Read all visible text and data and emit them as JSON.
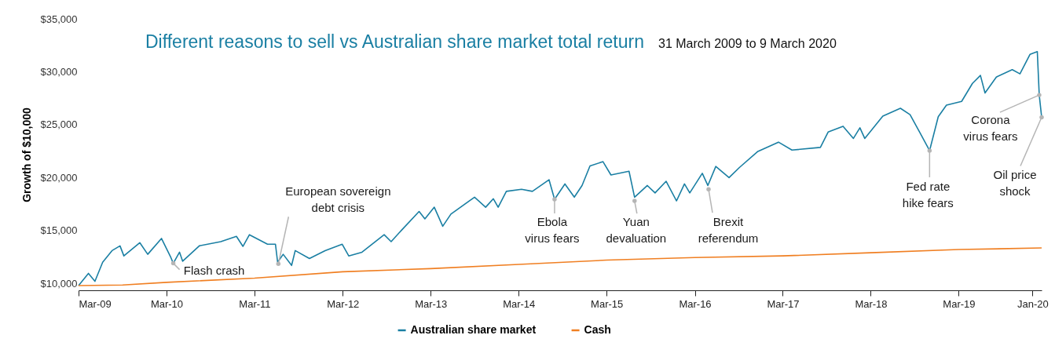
{
  "chart_data": {
    "type": "line",
    "title": "Different reasons to sell vs Australian share market total return",
    "subtitle": "31 March 2009 to 9 March 2020",
    "ylabel": "Growth of $10,000",
    "xlim": [
      "2009-03-31",
      "2020-03-09"
    ],
    "xticks": [
      {
        "value": "2009-03-31",
        "label": "Mar-09"
      },
      {
        "value": "2010-03-31",
        "label": "Mar-10"
      },
      {
        "value": "2011-03-31",
        "label": "Mar-11"
      },
      {
        "value": "2012-03-31",
        "label": "Mar-12"
      },
      {
        "value": "2013-03-31",
        "label": "Mar-13"
      },
      {
        "value": "2014-03-31",
        "label": "Mar-14"
      },
      {
        "value": "2015-03-31",
        "label": "Mar-15"
      },
      {
        "value": "2016-03-31",
        "label": "Mar-16"
      },
      {
        "value": "2017-03-31",
        "label": "Mar-17"
      },
      {
        "value": "2018-03-31",
        "label": "Mar-18"
      },
      {
        "value": "2019-03-31",
        "label": "Mar-19"
      },
      {
        "value": "2020-01-31",
        "label": "Jan-20"
      }
    ],
    "ylim": [
      9350,
      35000
    ],
    "yticks": [
      {
        "value": 10000,
        "label": "$10,000"
      },
      {
        "value": 15000,
        "label": "$15,000"
      },
      {
        "value": 20000,
        "label": "$20,000"
      },
      {
        "value": 25000,
        "label": "$25,000"
      },
      {
        "value": 30000,
        "label": "$30,000"
      },
      {
        "value": 35000,
        "label": "$35,000"
      }
    ],
    "grid": false,
    "legend": "bottom",
    "marker": "none",
    "line_style": "solid",
    "series": [
      {
        "name": "Australian share market",
        "color": "#1a7fa3",
        "x": [
          "2009-03-31",
          "2009-05-11",
          "2009-06-07",
          "2009-07-09",
          "2009-08-17",
          "2009-09-19",
          "2009-10-05",
          "2009-12-10",
          "2010-01-12",
          "2010-03-10",
          "2010-04-18",
          "2010-04-28",
          "2010-05-24",
          "2010-06-06",
          "2010-08-14",
          "2010-11-11",
          "2011-01-15",
          "2011-02-11",
          "2011-03-10",
          "2011-05-24",
          "2011-06-26",
          "2011-07-05",
          "2011-07-28",
          "2011-09-01",
          "2011-09-16",
          "2011-11-14",
          "2012-01-18",
          "2012-03-29",
          "2012-04-25",
          "2012-06-19",
          "2012-09-19",
          "2012-10-18",
          "2012-12-01",
          "2013-02-11",
          "2013-03-07",
          "2013-04-15",
          "2013-05-20",
          "2013-06-23",
          "2013-09-29",
          "2013-11-14",
          "2013-12-16",
          "2014-01-05",
          "2014-02-08",
          "2014-04-12",
          "2014-05-27",
          "2014-08-04",
          "2014-08-27",
          "2014-10-09",
          "2014-11-17",
          "2014-12-19",
          "2015-01-21",
          "2015-03-16",
          "2015-04-18",
          "2015-07-02",
          "2015-07-25",
          "2015-09-16",
          "2015-10-18",
          "2015-12-03",
          "2016-01-15",
          "2016-02-17",
          "2016-03-10",
          "2016-05-01",
          "2016-05-24",
          "2016-06-26",
          "2016-08-20",
          "2016-10-02",
          "2016-12-16",
          "2017-03-13",
          "2017-05-08",
          "2017-09-03",
          "2017-10-05",
          "2017-12-06",
          "2018-01-18",
          "2018-02-14",
          "2018-03-06",
          "2018-05-20",
          "2018-08-01",
          "2018-09-10",
          "2018-10-21",
          "2018-11-30",
          "2019-01-05",
          "2019-02-08",
          "2019-04-12",
          "2019-05-27",
          "2019-06-29",
          "2019-07-18",
          "2019-09-03",
          "2019-11-08",
          "2019-12-10",
          "2020-01-21",
          "2020-02-20",
          "2020-02-28",
          "2020-03-09"
        ],
        "values": [
          9800,
          10950,
          10200,
          12000,
          13100,
          13550,
          12600,
          13850,
          12750,
          14250,
          12450,
          11900,
          12950,
          12100,
          13550,
          13950,
          14450,
          13500,
          14600,
          13700,
          13700,
          12000,
          12750,
          11700,
          13100,
          12350,
          13100,
          13700,
          12600,
          12950,
          14600,
          13950,
          15050,
          16800,
          16100,
          17200,
          15400,
          16550,
          18150,
          17200,
          18000,
          17200,
          18700,
          18900,
          18700,
          19800,
          17950,
          19400,
          18150,
          19250,
          21100,
          21500,
          20250,
          20600,
          18150,
          19250,
          18550,
          19650,
          17800,
          19400,
          18550,
          20400,
          19250,
          21050,
          20000,
          20950,
          22450,
          23350,
          22600,
          22850,
          24300,
          24850,
          23700,
          24700,
          23700,
          25800,
          26550,
          25950,
          24250,
          22550,
          25750,
          26850,
          27200,
          28900,
          29650,
          28000,
          29500,
          30200,
          29800,
          31650,
          31900,
          27800,
          25700
        ]
      },
      {
        "name": "Cash",
        "color": "#f07f22",
        "x": [
          "2009-03-31",
          "2009-09-30",
          "2010-03-31",
          "2011-03-31",
          "2012-03-31",
          "2013-03-31",
          "2014-03-31",
          "2015-03-31",
          "2016-03-31",
          "2017-03-31",
          "2018-03-31",
          "2019-03-31",
          "2020-03-09"
        ],
        "values": [
          9800,
          9850,
          10100,
          10500,
          11100,
          11400,
          11800,
          12200,
          12450,
          12600,
          12900,
          13200,
          13350
        ]
      }
    ],
    "annotations": [
      {
        "text": "Flash crash",
        "x": "2010-04-28",
        "y": 11900
      },
      {
        "text": "European sovereign\ndebt crisis",
        "x": "2011-07-08",
        "y": 11850
      },
      {
        "text": "Ebola\nvirus fears",
        "x": "2014-08-27",
        "y": 17950
      },
      {
        "text": "Yuan\ndevaluation",
        "x": "2015-07-25",
        "y": 17800
      },
      {
        "text": "Brexit\nreferendum",
        "x": "2016-05-27",
        "y": 18900
      },
      {
        "text": "Fed rate\nhike fears",
        "x": "2018-11-30",
        "y": 22550
      },
      {
        "text": "Corona\nvirus fears",
        "x": "2020-02-28",
        "y": 27800
      },
      {
        "text": "Oil price\nshock",
        "x": "2020-03-09",
        "y": 25700
      }
    ]
  }
}
